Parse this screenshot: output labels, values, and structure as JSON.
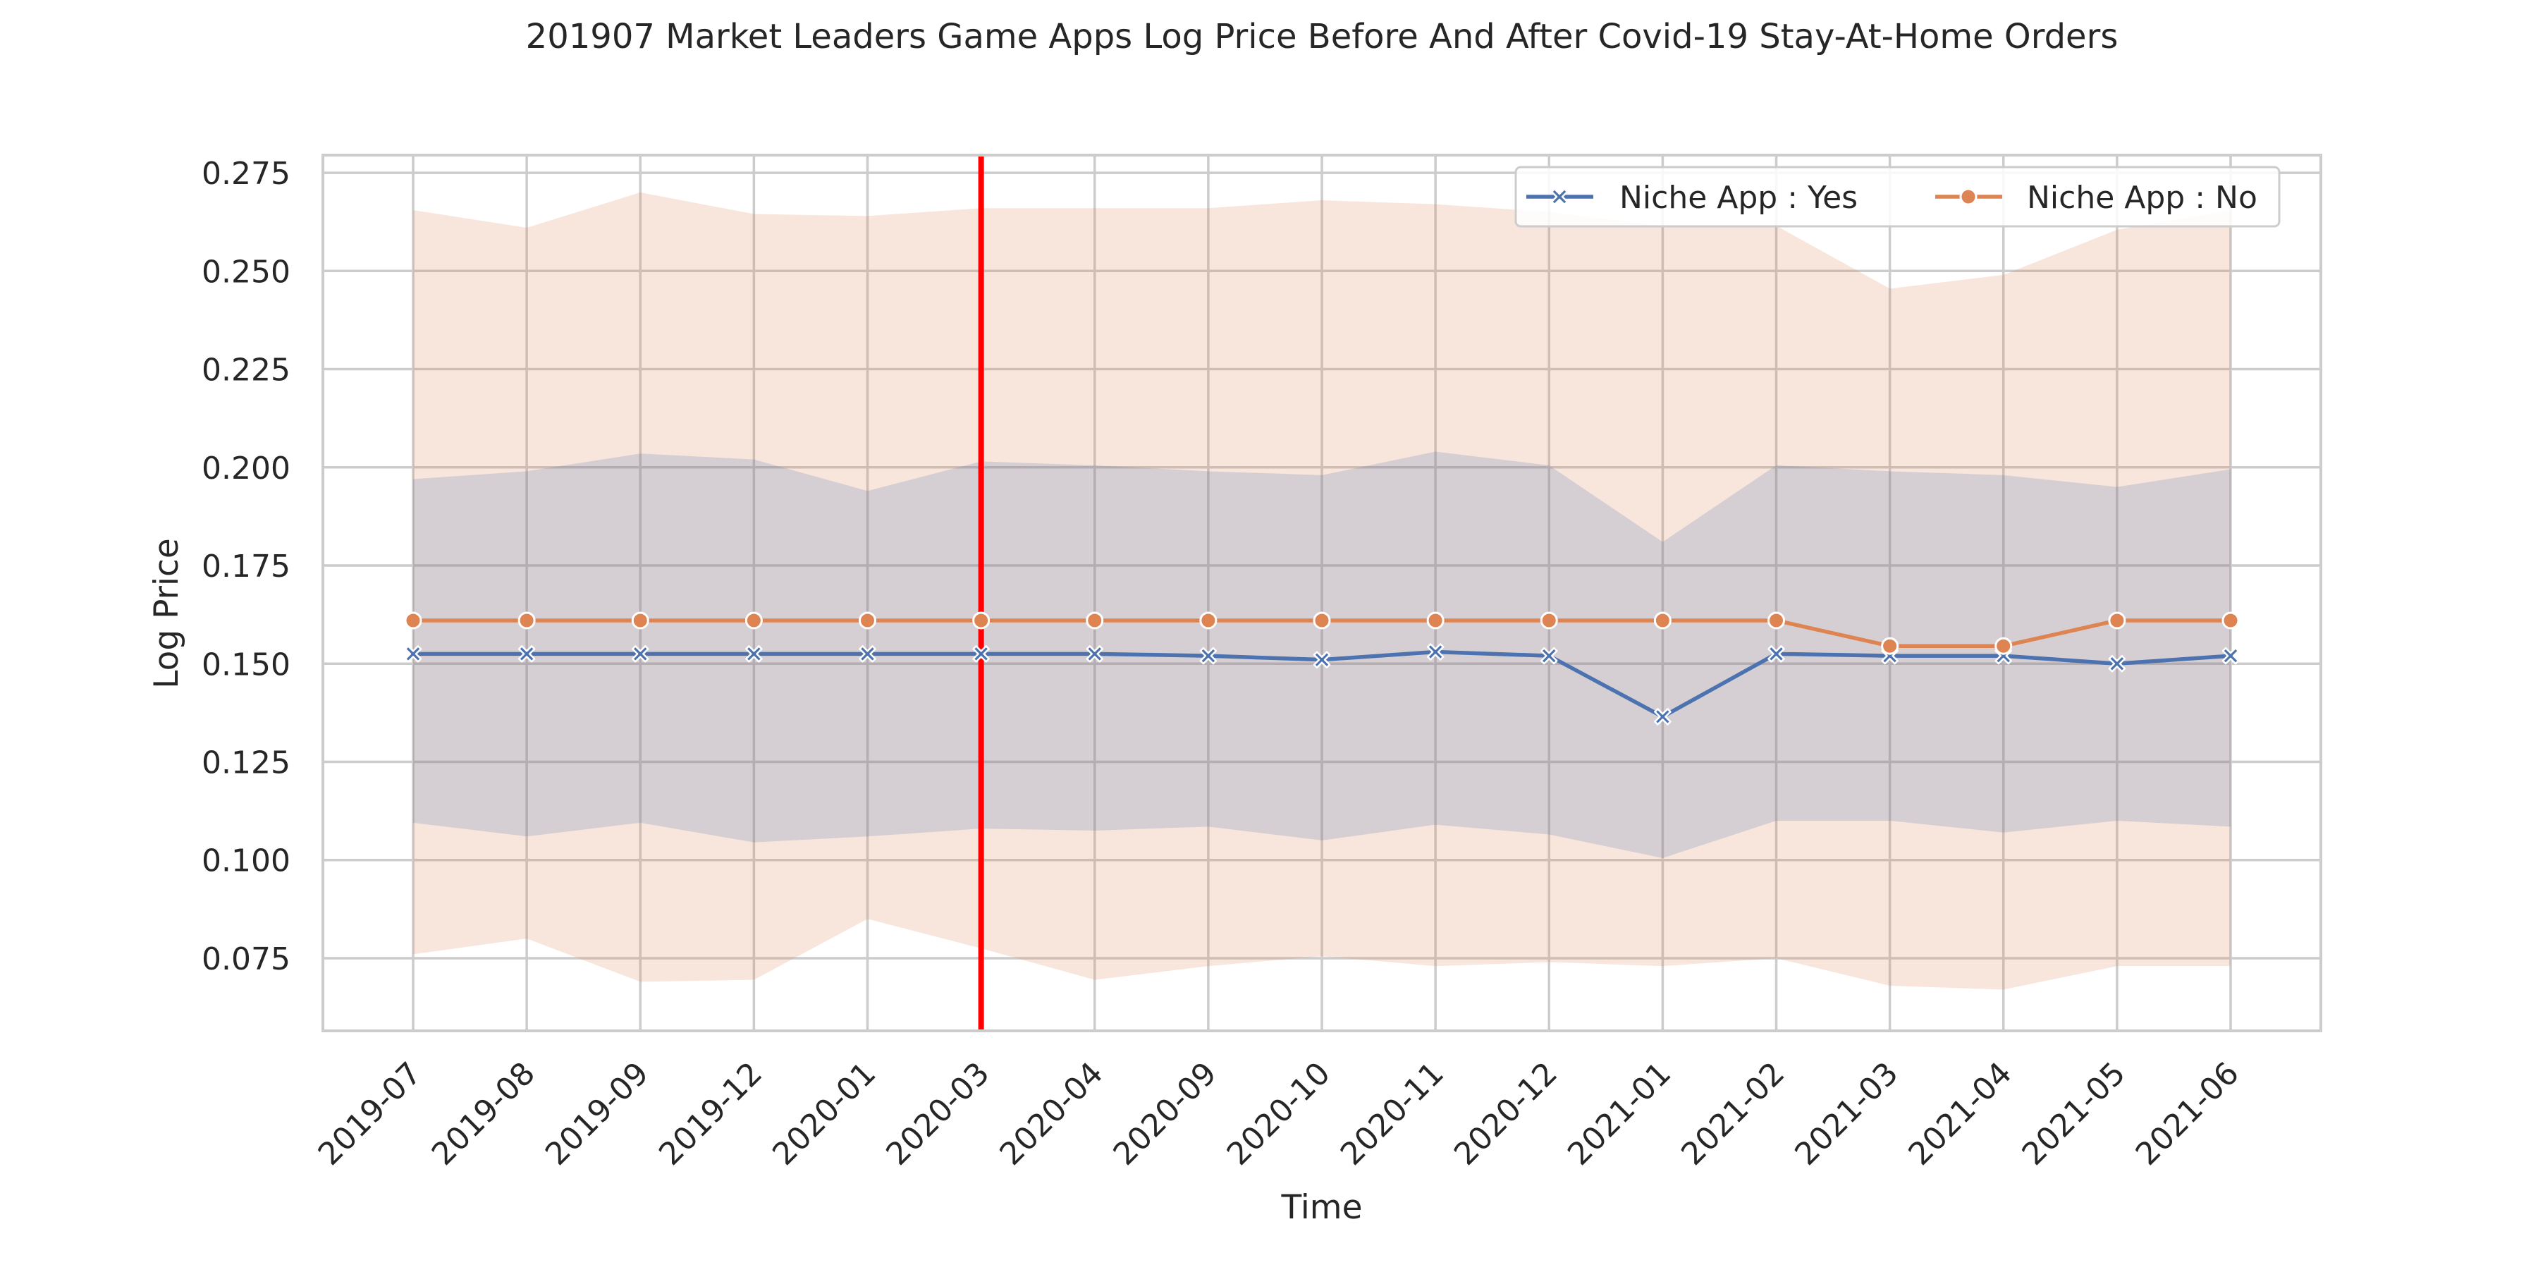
{
  "chart_data": {
    "type": "line",
    "title": "201907 Market Leaders Game Apps Log Price Before And After Covid-19 Stay-At-Home Orders",
    "xlabel": "Time",
    "ylabel": "Log Price",
    "categories": [
      "2019-07",
      "2019-08",
      "2019-09",
      "2019-12",
      "2020-01",
      "2020-03",
      "2020-04",
      "2020-09",
      "2020-10",
      "2020-11",
      "2020-12",
      "2021-01",
      "2021-02",
      "2021-03",
      "2021-04",
      "2021-05",
      "2021-06"
    ],
    "ylim": [
      0.0565,
      0.2795
    ],
    "yticks": [
      0.075,
      0.1,
      0.125,
      0.15,
      0.175,
      0.2,
      0.225,
      0.25,
      0.275
    ],
    "ytick_labels": [
      "0.075",
      "0.100",
      "0.125",
      "0.150",
      "0.175",
      "0.200",
      "0.225",
      "0.250",
      "0.275"
    ],
    "grid": true,
    "legend_position": "top-right",
    "reference_line": {
      "category": "2020-03",
      "color": "#ff0000"
    },
    "series": [
      {
        "name": "Niche App : Yes",
        "color": "#4c72b0",
        "marker": "x",
        "values": [
          0.1525,
          0.1525,
          0.1525,
          0.1525,
          0.1525,
          0.1525,
          0.1525,
          0.152,
          0.151,
          0.153,
          0.152,
          0.1365,
          0.1525,
          0.152,
          0.152,
          0.15,
          0.152
        ],
        "ci_upper": [
          0.197,
          0.199,
          0.2035,
          0.202,
          0.194,
          0.2015,
          0.2005,
          0.199,
          0.198,
          0.204,
          0.2005,
          0.181,
          0.2005,
          0.199,
          0.198,
          0.195,
          0.1995
        ],
        "ci_lower": [
          0.1095,
          0.106,
          0.1095,
          0.1045,
          0.106,
          0.108,
          0.1075,
          0.1085,
          0.105,
          0.109,
          0.1065,
          0.1005,
          0.11,
          0.11,
          0.107,
          0.11,
          0.1085
        ]
      },
      {
        "name": "Niche App : No",
        "color": "#dd8452",
        "marker": "o",
        "values": [
          0.161,
          0.161,
          0.161,
          0.161,
          0.161,
          0.161,
          0.161,
          0.161,
          0.161,
          0.161,
          0.161,
          0.161,
          0.161,
          0.1545,
          0.1545,
          0.161,
          0.161
        ],
        "ci_upper": [
          0.2655,
          0.261,
          0.27,
          0.2645,
          0.264,
          0.266,
          0.266,
          0.266,
          0.268,
          0.267,
          0.265,
          0.2615,
          0.2615,
          0.2455,
          0.249,
          0.2605,
          0.2655
        ],
        "ci_lower": [
          0.076,
          0.08,
          0.069,
          0.0695,
          0.085,
          0.0775,
          0.0695,
          0.073,
          0.0755,
          0.073,
          0.074,
          0.073,
          0.075,
          0.068,
          0.067,
          0.073,
          0.073
        ]
      }
    ]
  }
}
